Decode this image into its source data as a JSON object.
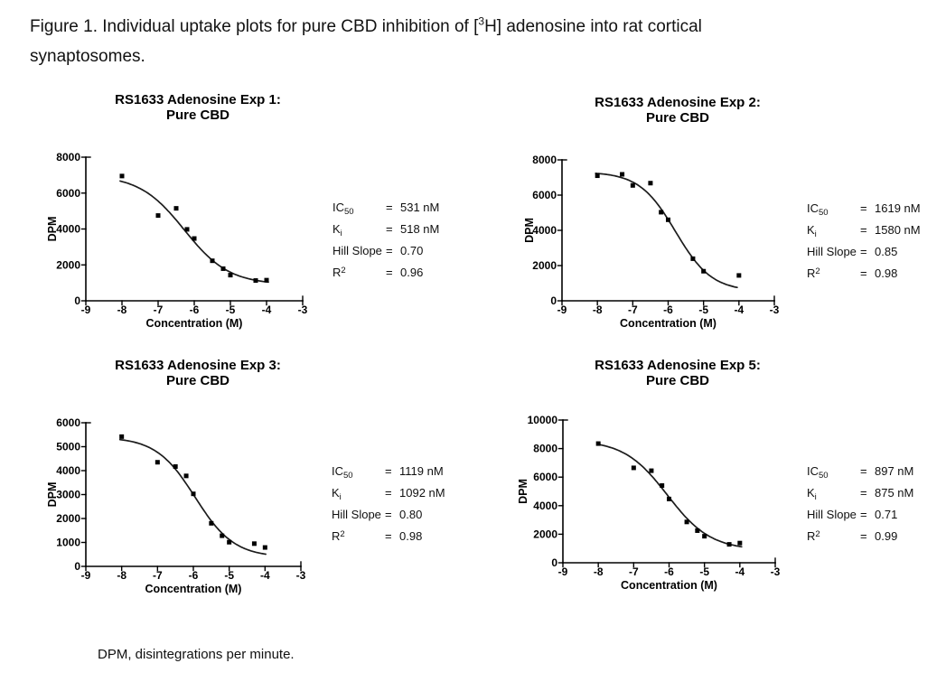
{
  "page": {
    "caption": {
      "line1_pre": "Figure 1. Individual uptake plots for pure CBD inhibition of [",
      "line1_sup": "3",
      "line1_post": "H] adenosine into rat cortical",
      "line2": "synaptosomes."
    },
    "footnote": "DPM, disintegrations per minute."
  },
  "colors": {
    "axis": "#000000",
    "curve": "#1c1c1c",
    "point": "#000000",
    "text": "#000000"
  },
  "chart_data": [
    {
      "type": "scatter",
      "title_line1": "RS1633 Adenosine Exp 1:",
      "title_line2": "Pure CBD",
      "xlabel": "Concentration (M)",
      "ylabel": "DPM",
      "xlim": [
        -9,
        -3
      ],
      "ylim": [
        0,
        8000
      ],
      "xticks": [
        -9,
        -8,
        -7,
        -6,
        -5,
        -4,
        -3
      ],
      "yticks": [
        0,
        2000,
        4000,
        6000,
        8000
      ],
      "points": [
        [
          -8,
          6950
        ],
        [
          -7,
          4750
        ],
        [
          -6.5,
          5150
        ],
        [
          -6.2,
          3980
        ],
        [
          -6,
          3470
        ],
        [
          -5.5,
          2230
        ],
        [
          -5.2,
          1790
        ],
        [
          -5,
          1430
        ],
        [
          -4.3,
          1130
        ],
        [
          -4,
          1150
        ]
      ],
      "fit_curve": {
        "top": 7000,
        "bottom": 900,
        "logIC50": -6.275,
        "hill": 0.7,
        "x_start": -8.05,
        "x_end": -3.95
      },
      "stats": [
        {
          "label_base": "IC",
          "label_sub": "50",
          "label_sup": "",
          "eq": "=",
          "value": "531 nM"
        },
        {
          "label_base": "K",
          "label_sub": "i",
          "label_sup": "",
          "eq": "=",
          "value": "518 nM"
        },
        {
          "label_base": "Hill Slope",
          "label_sub": "",
          "label_sup": "",
          "eq": "=",
          "value": "0.70"
        },
        {
          "label_base": "R",
          "label_sub": "",
          "label_sup": "2",
          "eq": "=",
          "value": "0.96"
        }
      ]
    },
    {
      "type": "scatter",
      "title_line1": "RS1633 Adenosine Exp 2:",
      "title_line2": "Pure CBD",
      "xlabel": "Concentration (M)",
      "ylabel": "DPM",
      "xlim": [
        -9,
        -3
      ],
      "ylim": [
        0,
        8000
      ],
      "xticks": [
        -9,
        -8,
        -7,
        -6,
        -5,
        -4,
        -3
      ],
      "yticks": [
        0,
        2000,
        4000,
        6000,
        8000
      ],
      "points": [
        [
          -8,
          7100
        ],
        [
          -7.3,
          7180
        ],
        [
          -7,
          6550
        ],
        [
          -6.5,
          6680
        ],
        [
          -6.2,
          5030
        ],
        [
          -6,
          4600
        ],
        [
          -5.3,
          2390
        ],
        [
          -5,
          1680
        ],
        [
          -4,
          1440
        ]
      ],
      "fit_curve": {
        "top": 7320,
        "bottom": 540,
        "logIC50": -5.791,
        "hill": 0.85,
        "x_start": -8.05,
        "x_end": -4.05
      },
      "stats": [
        {
          "label_base": "IC",
          "label_sub": "50",
          "label_sup": "",
          "eq": "=",
          "value": "1619 nM"
        },
        {
          "label_base": "K",
          "label_sub": "i",
          "label_sup": "",
          "eq": "=",
          "value": "1580 nM"
        },
        {
          "label_base": "Hill Slope",
          "label_sub": "",
          "label_sup": "",
          "eq": "=",
          "value": "0.85"
        },
        {
          "label_base": "R",
          "label_sub": "",
          "label_sup": "2",
          "eq": "=",
          "value": "0.98"
        }
      ]
    },
    {
      "type": "scatter",
      "title_line1": "RS1633 Adenosine Exp 3:",
      "title_line2": "Pure CBD",
      "xlabel": "Concentration (M)",
      "ylabel": "DPM",
      "xlim": [
        -9,
        -3
      ],
      "ylim": [
        0,
        6000
      ],
      "xticks": [
        -9,
        -8,
        -7,
        -6,
        -5,
        -4,
        -3
      ],
      "yticks": [
        0,
        1000,
        2000,
        3000,
        4000,
        5000,
        6000
      ],
      "points": [
        [
          -8,
          5420
        ],
        [
          -7,
          4350
        ],
        [
          -6.5,
          4170
        ],
        [
          -6.2,
          3780
        ],
        [
          -6,
          3030
        ],
        [
          -5.5,
          1800
        ],
        [
          -5.2,
          1280
        ],
        [
          -5,
          1010
        ],
        [
          -4.3,
          950
        ],
        [
          -4,
          790
        ]
      ],
      "fit_curve": {
        "top": 5400,
        "bottom": 380,
        "logIC50": -5.951,
        "hill": 0.8,
        "x_start": -8.05,
        "x_end": -3.98
      },
      "stats": [
        {
          "label_base": "IC",
          "label_sub": "50",
          "label_sup": "",
          "eq": "=",
          "value": "1119 nM"
        },
        {
          "label_base": "K",
          "label_sub": "i",
          "label_sup": "",
          "eq": "=",
          "value": "1092 nM"
        },
        {
          "label_base": "Hill Slope",
          "label_sub": "",
          "label_sup": "",
          "eq": "=",
          "value": "0.80"
        },
        {
          "label_base": "R",
          "label_sub": "",
          "label_sup": "2",
          "eq": "=",
          "value": "0.98"
        }
      ]
    },
    {
      "type": "scatter",
      "title_line1": "RS1633 Adenosine Exp 5:",
      "title_line2": "Pure CBD",
      "xlabel": "Concentration (M)",
      "ylabel": "DPM",
      "xlim": [
        -9,
        -3
      ],
      "ylim": [
        0,
        10000
      ],
      "xticks": [
        -9,
        -8,
        -7,
        -6,
        -5,
        -4,
        -3
      ],
      "yticks": [
        0,
        2000,
        4000,
        6000,
        8000,
        10000
      ],
      "points": [
        [
          -8,
          8350
        ],
        [
          -7,
          6650
        ],
        [
          -6.5,
          6450
        ],
        [
          -6.2,
          5410
        ],
        [
          -6,
          4470
        ],
        [
          -5.5,
          2860
        ],
        [
          -5.2,
          2250
        ],
        [
          -5,
          1860
        ],
        [
          -4.3,
          1290
        ],
        [
          -4,
          1380
        ]
      ],
      "fit_curve": {
        "top": 8600,
        "bottom": 880,
        "logIC50": -6.047,
        "hill": 0.71,
        "x_start": -8.0,
        "x_end": -3.95
      },
      "stats": [
        {
          "label_base": "IC",
          "label_sub": "50",
          "label_sup": "",
          "eq": "=",
          "value": "897 nM"
        },
        {
          "label_base": "K",
          "label_sub": "i",
          "label_sup": "",
          "eq": "=",
          "value": "875 nM"
        },
        {
          "label_base": "Hill Slope",
          "label_sub": "",
          "label_sup": "",
          "eq": "=",
          "value": "0.71"
        },
        {
          "label_base": "R",
          "label_sub": "",
          "label_sup": "2",
          "eq": "=",
          "value": "0.99"
        }
      ]
    }
  ]
}
